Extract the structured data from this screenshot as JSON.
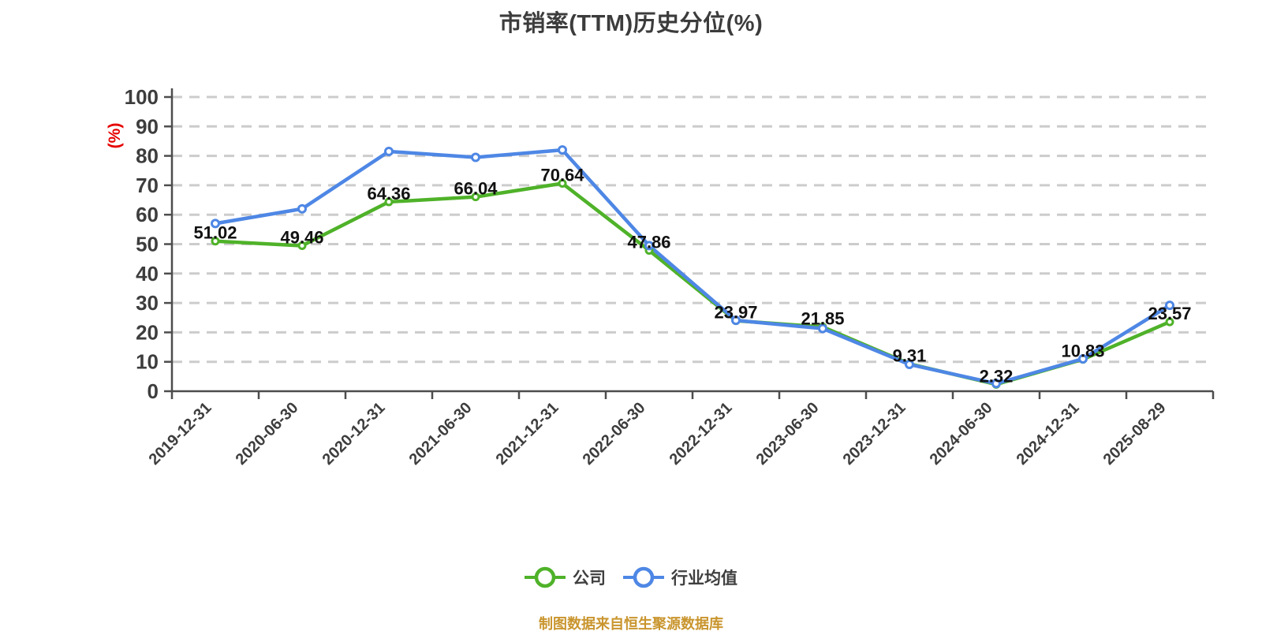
{
  "title": "市销率(TTM)历史分位(%)",
  "y_axis_unit": "(%)",
  "footer": "制图数据来自恒生聚源数据库",
  "colors": {
    "company_green": "#4fb229",
    "industry_blue": "#4e87e5",
    "grid_line": "#cccccc",
    "axis_line": "#4d4d4d",
    "tick_text": "#3d3d3d",
    "data_label_text": "#111111",
    "unit_label_red": "#e60000",
    "title_text": "#3c3c3c",
    "footer_orange": "#c9952e",
    "marker_fill": "#ffffff"
  },
  "legend": {
    "items": [
      {
        "label": "公司",
        "key": "company"
      },
      {
        "label": "行业均值",
        "key": "industry-average"
      }
    ]
  },
  "chart_data": {
    "type": "line",
    "title": "市销率(TTM)历史分位(%)",
    "categories": [
      "2019-12-31",
      "2020-06-30",
      "2020-12-31",
      "2021-06-30",
      "2021-12-31",
      "2022-06-30",
      "2022-12-31",
      "2023-06-30",
      "2023-12-31",
      "2024-06-30",
      "2024-12-31",
      "2025-08-29"
    ],
    "series": [
      {
        "name": "公司",
        "key": "company",
        "color": "#4fb229",
        "values": [
          51.02,
          49.46,
          64.36,
          66.04,
          70.64,
          47.86,
          23.97,
          21.85,
          9.31,
          2.32,
          10.83,
          23.57
        ],
        "point_labels": true
      },
      {
        "name": "行业均值",
        "key": "industry-average",
        "color": "#4e87e5",
        "values": [
          57.0,
          62.0,
          81.5,
          79.5,
          82.0,
          49.5,
          24.1,
          21.3,
          9.1,
          2.6,
          11.0,
          29.2
        ],
        "point_labels": false
      }
    ],
    "ylabel": "(%)",
    "ylim": [
      0,
      100
    ],
    "y_ticks": [
      0,
      10,
      20,
      30,
      40,
      50,
      60,
      70,
      80,
      90,
      100
    ],
    "grid": "horizontal-dashed",
    "legend_position": "bottom",
    "x_label_rotation": -45
  }
}
